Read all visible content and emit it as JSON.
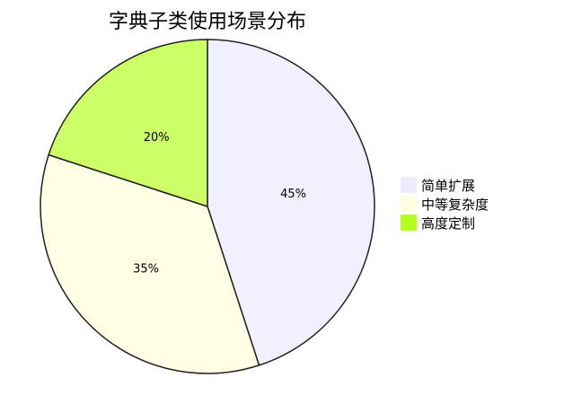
{
  "chart_data": {
    "type": "pie",
    "title": "字典子类使用场景分布",
    "categories": [
      "简单扩展",
      "中等复杂度",
      "高度定制"
    ],
    "values": [
      45,
      35,
      20
    ],
    "labels": [
      "45%",
      "35%",
      "20%"
    ],
    "colors": [
      "#f0f0ff",
      "#ffffe6",
      "#ccff66"
    ],
    "legend_colors": [
      "#ececff",
      "#ffffe0",
      "#b5ff1f"
    ],
    "legend_position": "right",
    "start_angle": "top",
    "direction": "clockwise"
  }
}
